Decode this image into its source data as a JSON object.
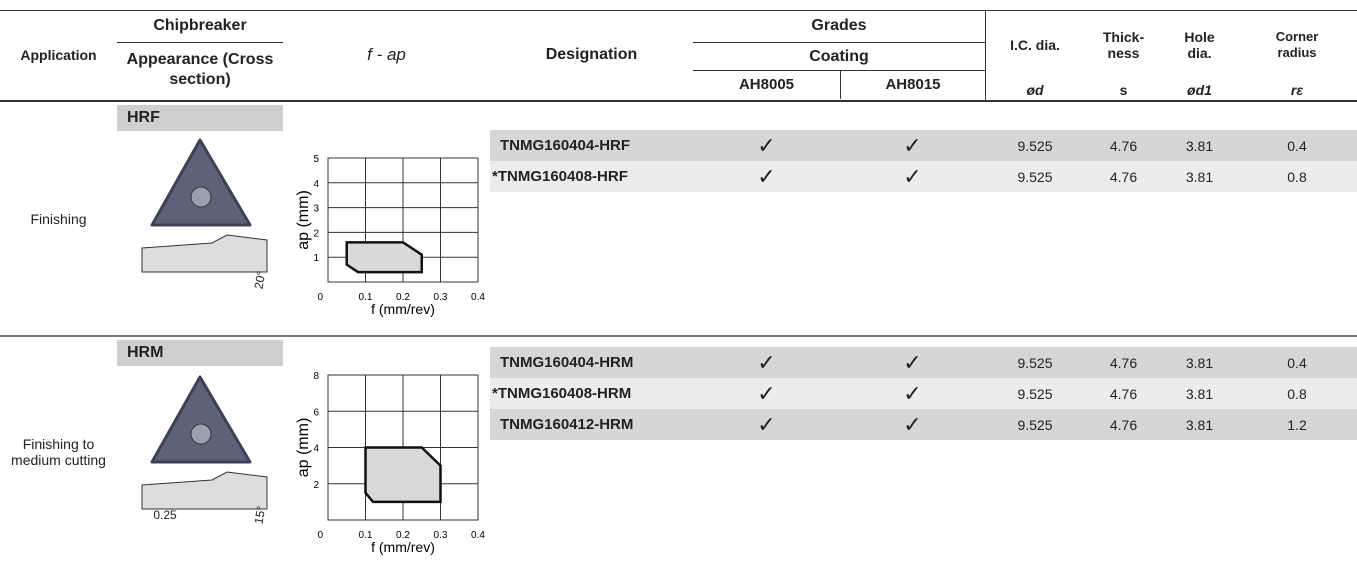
{
  "header": {
    "application": "Application",
    "chipbreaker": "Chipbreaker",
    "appearance": "Appearance (Cross section)",
    "fap": "f - ap",
    "designation": "Designation",
    "grades": "Grades",
    "coating": "Coating",
    "grade1": "AH8005",
    "grade2": "AH8015",
    "ic": "I.C. dia.",
    "ic_sym": "ød",
    "thick": "Thick- ness",
    "thick_sym": "s",
    "hole": "Hole dia.",
    "hole_sym": "ød1",
    "corner": "Corner radius",
    "corner_sym": "rε"
  },
  "groups": [
    {
      "application": "Finishing",
      "chipbreaker": "HRF",
      "dims": [
        "20°"
      ],
      "chart": {
        "type": "area",
        "ylabel": "ap (mm)",
        "xlabel": "f (mm/rev)",
        "xlim": [
          0,
          0.4
        ],
        "ylim": [
          0,
          5
        ],
        "xticks": [
          0.1,
          0.2,
          0.3,
          0.4
        ],
        "yticks": [
          0,
          1,
          2,
          3,
          4,
          5
        ],
        "grid": true,
        "color": "#d9d9d9",
        "x": [
          0.05,
          0.2,
          0.25,
          0.25,
          0.08,
          0.05
        ],
        "values": [
          1.6,
          1.6,
          1.1,
          0.4,
          0.4,
          0.7
        ]
      },
      "rows": [
        [
          "TNMG160404-HRF",
          "✓",
          "✓",
          "9.525",
          "4.76",
          "3.81",
          "0.4"
        ],
        [
          "*TNMG160408-HRF",
          "✓",
          "✓",
          "9.525",
          "4.76",
          "3.81",
          "0.8"
        ]
      ]
    },
    {
      "application": "Finishing to medium cutting",
      "chipbreaker": "HRM",
      "dims": [
        "0.25",
        "15°"
      ],
      "chart": {
        "type": "area",
        "ylabel": "ap (mm)",
        "xlabel": "f (mm/rev)",
        "xlim": [
          0,
          0.4
        ],
        "ylim": [
          0,
          8
        ],
        "xticks": [
          0.1,
          0.2,
          0.3,
          0.4
        ],
        "yticks": [
          0,
          2,
          4,
          6,
          8
        ],
        "grid": true,
        "color": "#d9d9d9",
        "x": [
          0.1,
          0.25,
          0.3,
          0.3,
          0.12,
          0.1
        ],
        "values": [
          4,
          4,
          3,
          1,
          1,
          1.5
        ]
      },
      "rows": [
        [
          "TNMG160404-HRM",
          "✓",
          "✓",
          "9.525",
          "4.76",
          "3.81",
          "0.4"
        ],
        [
          "*TNMG160408-HRM",
          "✓",
          "✓",
          "9.525",
          "4.76",
          "3.81",
          "0.8"
        ],
        [
          "TNMG160412-HRM",
          "✓",
          "✓",
          "9.525",
          "4.76",
          "3.81",
          "1.2"
        ]
      ]
    }
  ]
}
